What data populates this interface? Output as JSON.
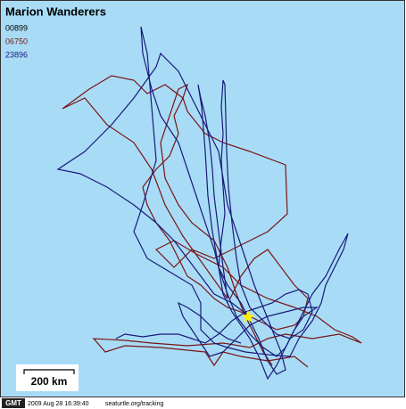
{
  "title": "Marion Wanderers",
  "legend": [
    "00899",
    "06750",
    "23896"
  ],
  "scale_label": "200 km",
  "footer": {
    "timezone": "GMT",
    "timestamp": "2009 Aug 28 16:39:40",
    "source": "seaturtle.org/tracking"
  }
}
